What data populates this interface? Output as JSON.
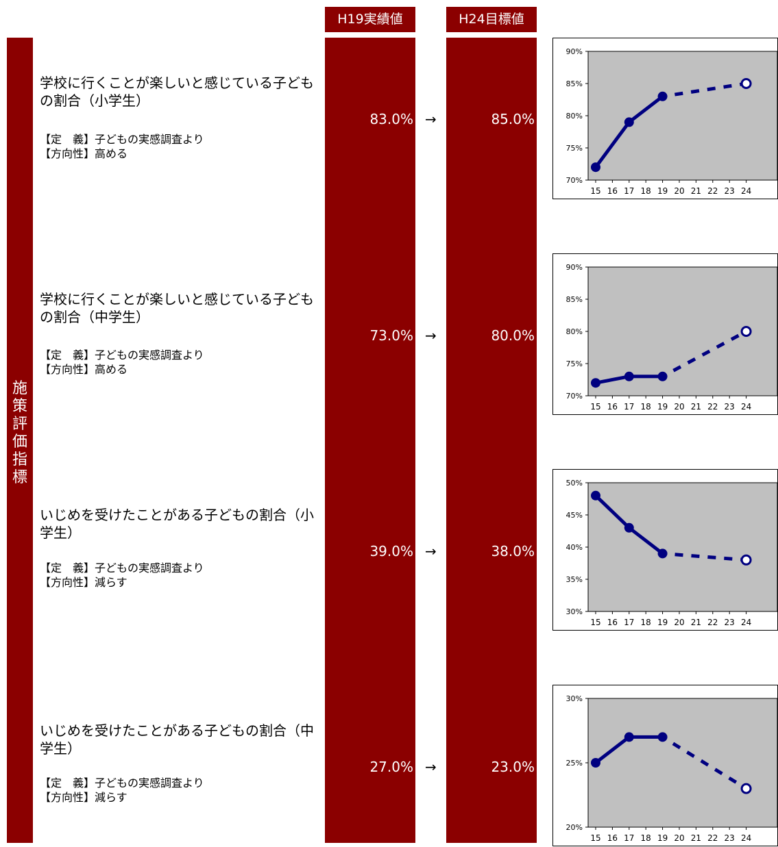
{
  "header": {
    "current_label": "H19実績値",
    "target_label": "H24目標値"
  },
  "sidebar": {
    "label": "施\n策\n評\n価\n指\n標"
  },
  "arrow": "→",
  "indicators": [
    {
      "title": "学校に行くことが楽しいと感じている子どもの割合（小学生）",
      "definition": "【定　義】子どもの実感調査より",
      "direction": "【方向性】高める",
      "current": "83.0%",
      "target": "85.0%"
    },
    {
      "title": "学校に行くことが楽しいと感じている子どもの割合（中学生）",
      "definition": "【定　義】子どもの実感調査より",
      "direction": "【方向性】高める",
      "current": "73.0%",
      "target": "80.0%"
    },
    {
      "title": "いじめを受けたことがある子どもの割合（小学生）",
      "definition": "【定　義】子どもの実感調査より",
      "direction": "【方向性】減らす",
      "current": "39.0%",
      "target": "38.0%"
    },
    {
      "title": "いじめを受けたことがある子どもの割合（中学生）",
      "definition": "【定　義】子どもの実感調査より",
      "direction": "【方向性】減らす",
      "current": "27.0%",
      "target": "23.0%"
    }
  ],
  "colors": {
    "header_bg": "#8b0000",
    "plot_bg": "#c0c0c0",
    "line": "#000080"
  },
  "chart_data": [
    {
      "type": "line",
      "categories": [
        "15",
        "16",
        "17",
        "18",
        "19",
        "20",
        "21",
        "22",
        "23",
        "24"
      ],
      "ylim": [
        70,
        90
      ],
      "yticks": [
        70,
        75,
        80,
        85,
        90
      ],
      "ytick_labels": [
        "70%",
        "75%",
        "80%",
        "85%",
        "90%"
      ],
      "actual": [
        [
          15,
          72
        ],
        [
          17,
          79
        ],
        [
          19,
          83
        ]
      ],
      "target": [
        [
          19,
          83
        ],
        [
          24,
          85
        ]
      ],
      "grid": false
    },
    {
      "type": "line",
      "categories": [
        "15",
        "16",
        "17",
        "18",
        "19",
        "20",
        "21",
        "22",
        "23",
        "24"
      ],
      "ylim": [
        70,
        90
      ],
      "yticks": [
        70,
        75,
        80,
        85,
        90
      ],
      "ytick_labels": [
        "70%",
        "75%",
        "80%",
        "85%",
        "90%"
      ],
      "actual": [
        [
          15,
          72
        ],
        [
          17,
          73
        ],
        [
          19,
          73
        ]
      ],
      "target": [
        [
          19,
          73
        ],
        [
          24,
          80
        ]
      ],
      "grid": false
    },
    {
      "type": "line",
      "categories": [
        "15",
        "16",
        "17",
        "18",
        "19",
        "20",
        "21",
        "22",
        "23",
        "24"
      ],
      "ylim": [
        30,
        50
      ],
      "yticks": [
        30,
        35,
        40,
        45,
        50
      ],
      "ytick_labels": [
        "30%",
        "35%",
        "40%",
        "45%",
        "50%"
      ],
      "actual": [
        [
          15,
          48
        ],
        [
          17,
          43
        ],
        [
          19,
          39
        ]
      ],
      "target": [
        [
          19,
          39
        ],
        [
          24,
          38
        ]
      ],
      "grid": false
    },
    {
      "type": "line",
      "categories": [
        "15",
        "16",
        "17",
        "18",
        "19",
        "20",
        "21",
        "22",
        "23",
        "24"
      ],
      "ylim": [
        20,
        30
      ],
      "yticks": [
        20,
        25,
        30
      ],
      "ytick_labels": [
        "20%",
        "25%",
        "30%"
      ],
      "actual": [
        [
          15,
          25
        ],
        [
          17,
          27
        ],
        [
          19,
          27
        ]
      ],
      "target": [
        [
          19,
          27
        ],
        [
          24,
          23
        ]
      ],
      "grid": false
    }
  ]
}
